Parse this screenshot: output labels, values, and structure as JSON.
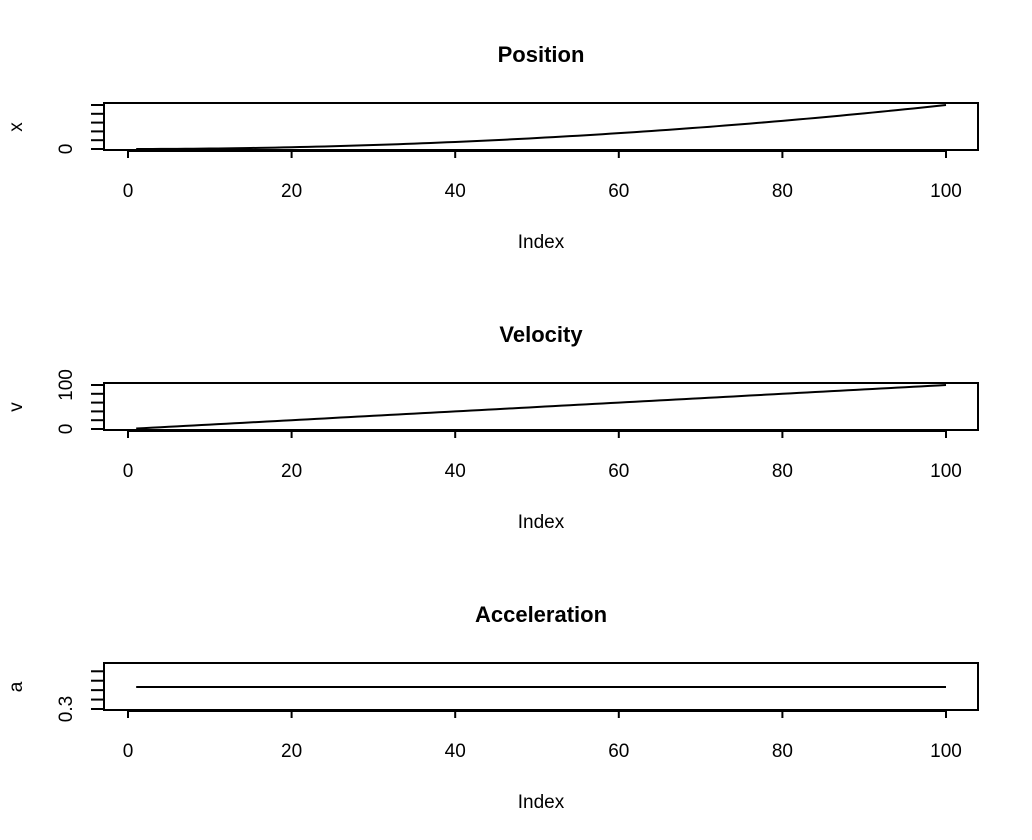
{
  "chart_data": [
    {
      "type": "line",
      "title": "Position",
      "xlabel": "Index",
      "ylabel": "x",
      "xlim": [
        1,
        100
      ],
      "ylim": [
        0,
        5000
      ],
      "x_ticks": [
        0,
        20,
        40,
        60,
        80,
        100
      ],
      "y_ticks": [
        0,
        1000,
        2000,
        3000,
        4000,
        5000
      ],
      "y_tick_labels": [
        "0",
        "",
        "",
        "",
        "",
        ""
      ],
      "series": [
        {
          "formula": "x = 0.5 * a * i^2",
          "x_start": 1,
          "x_end": 100,
          "a": 1
        }
      ]
    },
    {
      "type": "line",
      "title": "Velocity",
      "xlabel": "Index",
      "ylabel": "v",
      "xlim": [
        1,
        100
      ],
      "ylim": [
        0,
        100
      ],
      "x_ticks": [
        0,
        20,
        40,
        60,
        80,
        100
      ],
      "y_ticks": [
        0,
        20,
        40,
        60,
        80,
        100
      ],
      "y_tick_labels": [
        "0",
        "",
        "",
        "",
        "",
        "100"
      ],
      "series": [
        {
          "formula": "v = a * i",
          "x_start": 1,
          "x_end": 100,
          "a": 1
        }
      ]
    },
    {
      "type": "line",
      "title": "Acceleration",
      "xlabel": "Index",
      "ylabel": "a",
      "xlim": [
        1,
        100
      ],
      "ylim": [
        0.3,
        1.7
      ],
      "x_ticks": [
        0,
        20,
        40,
        60,
        80,
        100
      ],
      "y_ticks": [
        0.3,
        0.6,
        0.9,
        1.2,
        1.5
      ],
      "y_tick_labels": [
        "0.3",
        "",
        "",
        "",
        ""
      ],
      "series": [
        {
          "formula": "a = constant",
          "x_start": 1,
          "x_end": 100,
          "value": 1
        }
      ]
    }
  ]
}
